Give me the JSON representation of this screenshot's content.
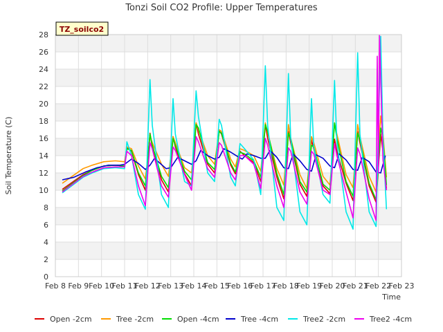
{
  "chart_data": {
    "type": "line",
    "title": "Tonzi Soil CO2 Profile: Upper Temperatures",
    "xlabel": "Time",
    "ylabel": "Soil Temperature (C)",
    "annotation": "TZ_soilco2",
    "x_ticks": [
      "Feb 8",
      "Feb 9",
      "Feb 10",
      "Feb 11",
      "Feb 12",
      "Feb 13",
      "Feb 14",
      "Feb 15",
      "Feb 16",
      "Feb 17",
      "Feb 18",
      "Feb 19",
      "Feb 20",
      "Feb 21",
      "Feb 22",
      "Feb 23"
    ],
    "xlim": [
      8,
      23
    ],
    "ylim": [
      0,
      28
    ],
    "y_ticks": [
      0,
      2,
      4,
      6,
      8,
      10,
      12,
      14,
      16,
      18,
      20,
      22,
      24,
      26,
      28
    ],
    "grid": true,
    "legend_position": "bottom",
    "x_units": "day of February",
    "series": [
      {
        "name": "Open -2cm",
        "color": "#dd0000",
        "x": [
          8.3,
          9.2,
          9.6,
          10.1,
          10.6,
          11.0,
          11.1,
          11.3,
          11.6,
          11.9,
          12.1,
          12.2,
          12.6,
          12.9,
          13.1,
          13.2,
          13.6,
          13.9,
          14.1,
          14.2,
          14.6,
          14.9,
          15.1,
          15.2,
          15.6,
          15.8,
          16.0,
          16.2,
          16.6,
          16.9,
          17.1,
          17.2,
          17.6,
          17.9,
          18.1,
          18.2,
          18.6,
          18.9,
          19.1,
          19.2,
          19.6,
          19.9,
          20.1,
          20.2,
          20.6,
          20.9,
          21.1,
          21.2,
          21.6,
          21.9,
          22.1,
          22.2,
          22.35
        ],
        "y": [
          10.1,
          11.8,
          12.3,
          12.8,
          12.9,
          12.8,
          15.0,
          14.5,
          11.8,
          10.0,
          16.6,
          15.0,
          11.2,
          9.8,
          16.2,
          15.0,
          11.9,
          10.5,
          17.8,
          16.5,
          13.0,
          12.0,
          16.9,
          16.5,
          12.9,
          11.9,
          14.5,
          14.0,
          13.2,
          11.0,
          17.6,
          16.0,
          11.5,
          9.0,
          16.8,
          15.5,
          10.7,
          9.3,
          15.8,
          14.8,
          10.5,
          9.6,
          15.9,
          14.5,
          10.8,
          8.8,
          16.8,
          15.5,
          10.5,
          8.6,
          16.5,
          14.5,
          10.2
        ]
      },
      {
        "name": "Tree -2cm",
        "color": "#ff9900",
        "x": [
          8.3,
          9.2,
          9.6,
          10.1,
          10.6,
          11.0,
          11.1,
          11.3,
          11.6,
          11.9,
          12.1,
          12.2,
          12.6,
          12.9,
          13.1,
          13.2,
          13.6,
          13.9,
          14.1,
          14.2,
          14.6,
          14.9,
          15.1,
          15.2,
          15.6,
          15.8,
          16.0,
          16.2,
          16.6,
          16.9,
          17.1,
          17.2,
          17.6,
          17.9,
          18.1,
          18.2,
          18.6,
          18.9,
          19.1,
          19.2,
          19.6,
          19.9,
          20.1,
          20.2,
          20.6,
          20.9,
          21.1,
          21.2,
          21.6,
          21.9,
          22.1,
          22.2,
          22.35
        ],
        "y": [
          10.8,
          12.5,
          12.9,
          13.3,
          13.4,
          13.3,
          15.0,
          14.8,
          12.8,
          11.3,
          16.2,
          15.5,
          13.0,
          11.6,
          16.2,
          15.5,
          12.6,
          12.0,
          17.8,
          17.0,
          14.0,
          13.0,
          17.0,
          16.8,
          13.6,
          12.7,
          14.8,
          14.6,
          14.0,
          12.2,
          17.8,
          16.6,
          12.5,
          10.6,
          17.6,
          16.0,
          11.8,
          10.2,
          16.2,
          15.5,
          11.6,
          10.6,
          17.8,
          16.5,
          11.8,
          10.3,
          17.6,
          16.2,
          11.6,
          9.8,
          18.6,
          16.5,
          11.5
        ]
      },
      {
        "name": "Open -4cm",
        "color": "#00dd00",
        "x": [
          8.3,
          9.2,
          9.6,
          10.1,
          10.6,
          11.0,
          11.1,
          11.3,
          11.6,
          11.9,
          12.1,
          12.2,
          12.6,
          12.9,
          13.1,
          13.2,
          13.6,
          13.9,
          14.1,
          14.2,
          14.6,
          14.9,
          15.1,
          15.2,
          15.6,
          15.8,
          16.0,
          16.2,
          16.6,
          16.9,
          17.1,
          17.2,
          17.6,
          17.9,
          18.1,
          18.2,
          18.6,
          18.9,
          19.1,
          19.2,
          19.6,
          19.9,
          20.1,
          20.2,
          20.6,
          20.9,
          21.1,
          21.2,
          21.6,
          21.9,
          22.1,
          22.2,
          22.35
        ],
        "y": [
          9.9,
          11.7,
          12.3,
          12.8,
          12.9,
          12.8,
          14.8,
          14.6,
          12.0,
          10.5,
          16.5,
          15.2,
          11.6,
          10.3,
          16.0,
          15.2,
          12.2,
          11.2,
          17.6,
          17.2,
          13.2,
          12.4,
          16.8,
          16.6,
          13.1,
          12.1,
          14.4,
          14.2,
          13.4,
          11.5,
          17.6,
          16.8,
          11.9,
          9.5,
          16.6,
          16.0,
          11.0,
          9.8,
          15.2,
          15.0,
          10.7,
          10.0,
          17.8,
          16.0,
          11.0,
          9.3,
          16.6,
          15.8,
          10.8,
          8.9,
          17.2,
          16.0,
          10.6
        ]
      },
      {
        "name": "Tree -4cm",
        "color": "#0000cc",
        "x": [
          8.3,
          8.8,
          9.3,
          9.8,
          10.3,
          10.8,
          11.0,
          11.3,
          11.6,
          11.9,
          12.1,
          12.3,
          12.5,
          12.8,
          13.0,
          13.3,
          13.6,
          13.9,
          14.1,
          14.3,
          14.6,
          14.9,
          15.1,
          15.3,
          15.6,
          15.9,
          16.1,
          16.3,
          16.6,
          16.9,
          17.1,
          17.3,
          17.6,
          17.9,
          18.1,
          18.3,
          18.6,
          18.9,
          19.1,
          19.3,
          19.6,
          19.9,
          20.1,
          20.3,
          20.6,
          20.9,
          21.1,
          21.3,
          21.6,
          21.9,
          22.1,
          22.3
        ],
        "y": [
          11.2,
          11.5,
          12.1,
          12.6,
          12.9,
          12.9,
          13.0,
          13.6,
          13.1,
          12.4,
          12.9,
          13.7,
          13.2,
          12.5,
          12.6,
          13.8,
          13.4,
          13.0,
          13.4,
          14.6,
          14.0,
          13.6,
          13.8,
          14.8,
          14.4,
          13.9,
          13.6,
          14.2,
          14.0,
          13.7,
          13.7,
          14.6,
          13.8,
          12.6,
          12.5,
          14.2,
          13.4,
          12.4,
          12.2,
          14.1,
          13.7,
          12.8,
          12.6,
          14.2,
          13.5,
          12.4,
          12.3,
          13.8,
          13.3,
          12.1,
          12.0,
          14.0
        ]
      },
      {
        "name": "Tree2 -2cm",
        "color": "#00e8e8",
        "x": [
          8.3,
          9.2,
          9.6,
          10.1,
          10.6,
          11.0,
          11.1,
          11.3,
          11.6,
          11.9,
          12.1,
          12.2,
          12.6,
          12.9,
          13.1,
          13.2,
          13.6,
          13.9,
          14.1,
          14.2,
          14.6,
          14.9,
          15.1,
          15.2,
          15.6,
          15.8,
          16.0,
          16.2,
          16.6,
          16.9,
          17.1,
          17.2,
          17.6,
          17.9,
          18.1,
          18.2,
          18.6,
          18.9,
          19.1,
          19.2,
          19.6,
          19.9,
          20.1,
          20.2,
          20.6,
          20.9,
          21.1,
          21.2,
          21.6,
          21.9,
          22.1,
          22.2,
          22.35
        ],
        "y": [
          9.7,
          11.5,
          12.0,
          12.5,
          12.6,
          12.5,
          15.6,
          14.0,
          9.5,
          7.8,
          22.8,
          17.5,
          9.5,
          8.0,
          20.6,
          16.5,
          11.0,
          10.5,
          21.5,
          18.5,
          12.0,
          11.0,
          18.2,
          17.5,
          11.5,
          10.5,
          15.4,
          14.8,
          13.5,
          9.5,
          24.4,
          17.5,
          8.0,
          6.5,
          23.5,
          16.0,
          7.5,
          6.0,
          20.6,
          15.0,
          9.5,
          8.5,
          22.7,
          15.5,
          7.5,
          5.5,
          25.9,
          16.5,
          7.5,
          5.8,
          27.8,
          16.0,
          7.8
        ]
      },
      {
        "name": "Tree2 -4cm",
        "color": "#ee00ee",
        "x": [
          8.3,
          9.2,
          9.6,
          10.1,
          10.6,
          11.0,
          11.1,
          11.3,
          11.6,
          11.9,
          12.1,
          12.2,
          12.6,
          12.9,
          13.1,
          13.2,
          13.6,
          13.9,
          14.1,
          14.2,
          14.6,
          14.9,
          15.1,
          15.2,
          15.6,
          15.8,
          16.0,
          16.2,
          16.6,
          16.9,
          17.1,
          17.2,
          17.6,
          17.9,
          18.1,
          18.2,
          18.6,
          18.9,
          19.1,
          19.2,
          19.6,
          19.9,
          20.1,
          20.2,
          20.6,
          20.9,
          21.1,
          21.2,
          21.6,
          21.9,
          21.95,
          22.0,
          22.05,
          22.2,
          22.35
        ],
        "y": [
          9.8,
          11.6,
          12.1,
          12.6,
          12.7,
          12.7,
          14.5,
          14.0,
          10.5,
          8.2,
          15.5,
          14.8,
          10.5,
          9.2,
          15.0,
          14.6,
          11.8,
          10.0,
          16.2,
          15.6,
          12.5,
          11.5,
          15.5,
          15.2,
          12.0,
          11.2,
          14.0,
          14.0,
          13.0,
          10.2,
          16.0,
          15.2,
          10.5,
          8.0,
          14.9,
          14.5,
          9.8,
          8.4,
          14.5,
          14.2,
          10.0,
          9.5,
          15.4,
          14.0,
          9.8,
          6.8,
          14.9,
          14.2,
          9.0,
          6.5,
          25.5,
          12.0,
          27.9,
          13.5,
          10.0
        ]
      }
    ]
  }
}
